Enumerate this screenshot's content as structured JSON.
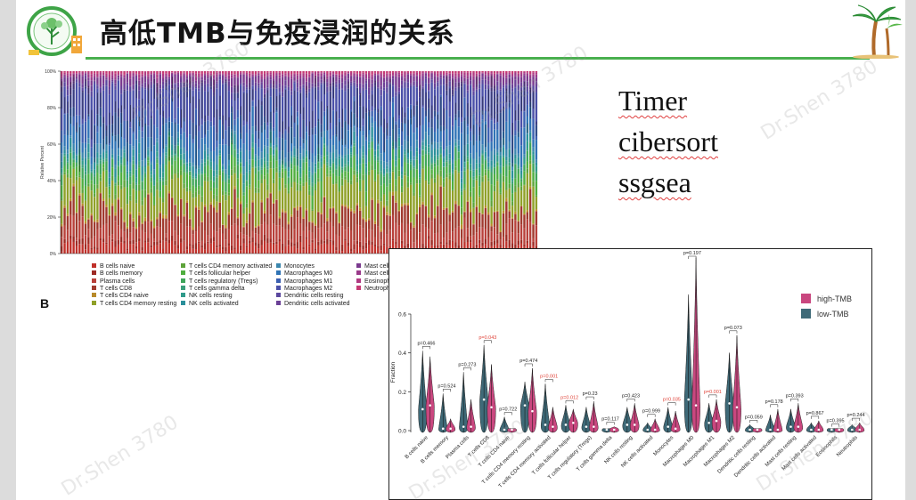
{
  "slide": {
    "title": "高低TMB与免疫浸润的关系",
    "methods": [
      "Timer",
      "cibersort",
      "ssgsea"
    ],
    "panel_label": "B",
    "watermark": "Dr.Shen 3780",
    "accent_color": "#49b04f",
    "logo_icon": "tree-logo-icon",
    "decor_icon": "palm-tree-icon"
  },
  "chart_data": [
    {
      "type": "bar",
      "subtype": "stacked-100-percent",
      "ylabel": "Relative Percent",
      "ytick_labels": [
        "0%",
        "20%",
        "40%",
        "60%",
        "80%",
        "100%"
      ],
      "ylim": [
        0,
        1
      ],
      "sample_count": 160,
      "cell_types": [
        {
          "name": "B cells naive",
          "color": "#c0302a",
          "mean": 0.04
        },
        {
          "name": "B cells memory",
          "color": "#9d2a24",
          "mean": 0.02
        },
        {
          "name": "Plasma cells",
          "color": "#b8403a",
          "mean": 0.07
        },
        {
          "name": "T cells CD8",
          "color": "#a03a2e",
          "mean": 0.1
        },
        {
          "name": "T cells CD4 naive",
          "color": "#b88a2a",
          "mean": 0.01
        },
        {
          "name": "T cells CD4 memory resting",
          "color": "#8fa028",
          "mean": 0.12
        },
        {
          "name": "T cells CD4 memory activated",
          "color": "#5da33a",
          "mean": 0.02
        },
        {
          "name": "T cells follicular helper",
          "color": "#4fae3f",
          "mean": 0.05
        },
        {
          "name": "T cells regulatory (Tregs)",
          "color": "#3fa55a",
          "mean": 0.04
        },
        {
          "name": "T cells gamma delta",
          "color": "#3a9e7a",
          "mean": 0.01
        },
        {
          "name": "NK cells resting",
          "color": "#2f9a8a",
          "mean": 0.02
        },
        {
          "name": "NK cells activated",
          "color": "#2a8f9a",
          "mean": 0.03
        },
        {
          "name": "Monocytes",
          "color": "#3a86ad",
          "mean": 0.03
        },
        {
          "name": "Macrophages M0",
          "color": "#2f73b5",
          "mean": 0.1
        },
        {
          "name": "Macrophages M1",
          "color": "#3a5fb0",
          "mean": 0.08
        },
        {
          "name": "Macrophages M2",
          "color": "#4a4fa8",
          "mean": 0.16
        },
        {
          "name": "Dendritic cells resting",
          "color": "#5a479e",
          "mean": 0.02
        },
        {
          "name": "Dendritic cells activated",
          "color": "#6a3f96",
          "mean": 0.02
        },
        {
          "name": "Mast cells resting",
          "color": "#7a3a8e",
          "mean": 0.03
        },
        {
          "name": "Mast cells activated",
          "color": "#9a3a8a",
          "mean": 0.01
        },
        {
          "name": "Eosinophils",
          "color": "#b03a82",
          "mean": 0.01
        },
        {
          "name": "Neutrophils",
          "color": "#c63a74",
          "mean": 0.01
        }
      ]
    },
    {
      "type": "violin",
      "ylabel": "Fraction",
      "ylim": [
        0,
        0.6
      ],
      "yticks": [
        0.0,
        0.2,
        0.4,
        0.6
      ],
      "ytick_labels": [
        "0.0",
        "0.2",
        "0.4",
        "0.6"
      ],
      "series": [
        {
          "name": "high-TMB",
          "color": "#c9477f"
        },
        {
          "name": "low-TMB",
          "color": "#3f6a78"
        }
      ],
      "categories": [
        {
          "name": "B cells naive",
          "p": "p=0.466",
          "sig": false,
          "max": 0.42,
          "high_max": 0.39,
          "low_max": 0.42,
          "high_med": 0.13,
          "low_med": 0.11
        },
        {
          "name": "B cells memory",
          "p": "p=0.524",
          "sig": false,
          "max": 0.2,
          "high_max": 0.07,
          "low_max": 0.2,
          "high_med": 0.01,
          "low_med": 0.01
        },
        {
          "name": "Plasma cells",
          "p": "p=0.273",
          "sig": false,
          "max": 0.31,
          "high_max": 0.17,
          "low_max": 0.31,
          "high_med": 0.02,
          "low_med": 0.02
        },
        {
          "name": "T cells CD8",
          "p": "p=0.043",
          "sig": true,
          "max": 0.45,
          "high_max": 0.35,
          "low_max": 0.45,
          "high_med": 0.12,
          "low_med": 0.16
        },
        {
          "name": "T cells CD4 naive",
          "p": "p=0.722",
          "sig": false,
          "max": 0.08,
          "high_max": 0.02,
          "low_max": 0.08,
          "high_med": 0.0,
          "low_med": 0.0
        },
        {
          "name": "T cells CD4 memory resting",
          "p": "p=0.474",
          "sig": false,
          "max": 0.33,
          "high_max": 0.33,
          "low_max": 0.26,
          "high_med": 0.1,
          "low_med": 0.13
        },
        {
          "name": "T cells CD4 memory activated",
          "p": "p=0.001",
          "sig": true,
          "max": 0.25,
          "high_max": 0.13,
          "low_max": 0.25,
          "high_med": 0.02,
          "low_med": 0.03
        },
        {
          "name": "T cells follicular helper",
          "p": "p=0.012",
          "sig": true,
          "max": 0.14,
          "high_max": 0.12,
          "low_max": 0.14,
          "high_med": 0.04,
          "low_med": 0.03
        },
        {
          "name": "T cells regulatory (Tregs)",
          "p": "p=0.23",
          "sig": false,
          "max": 0.16,
          "high_max": 0.16,
          "low_max": 0.13,
          "high_med": 0.02,
          "low_med": 0.02
        },
        {
          "name": "T cells gamma delta",
          "p": "p=0.117",
          "sig": false,
          "max": 0.03,
          "high_max": 0.03,
          "low_max": 0.01,
          "high_med": 0.0,
          "low_med": 0.0
        },
        {
          "name": "NK cells resting",
          "p": "p=0.423",
          "sig": false,
          "max": 0.15,
          "high_max": 0.15,
          "low_max": 0.13,
          "high_med": 0.03,
          "low_med": 0.03
        },
        {
          "name": "NK cells activated",
          "p": "p=0.999",
          "sig": false,
          "max": 0.07,
          "high_max": 0.07,
          "low_max": 0.05,
          "high_med": 0.0,
          "low_med": 0.0
        },
        {
          "name": "Monocytes",
          "p": "p=0.035",
          "sig": true,
          "max": 0.13,
          "high_max": 0.11,
          "low_max": 0.13,
          "high_med": 0.01,
          "low_med": 0.02
        },
        {
          "name": "Macrophages M0",
          "p": "p=0.197",
          "sig": false,
          "max": 0.9,
          "high_max": 0.9,
          "low_max": 0.71,
          "high_med": 0.13,
          "low_med": 0.16
        },
        {
          "name": "Macrophages M1",
          "p": "p=0.001",
          "sig": true,
          "max": 0.17,
          "high_max": 0.17,
          "low_max": 0.15,
          "high_med": 0.05,
          "low_med": 0.04
        },
        {
          "name": "Macrophages M2",
          "p": "p=0.073",
          "sig": false,
          "max": 0.5,
          "high_max": 0.5,
          "low_max": 0.41,
          "high_med": 0.12,
          "low_med": 0.14
        },
        {
          "name": "Dendritic cells resting",
          "p": "p=0.059",
          "sig": false,
          "max": 0.04,
          "high_max": 0.02,
          "low_max": 0.04,
          "high_med": 0.0,
          "low_med": 0.0
        },
        {
          "name": "Dendritic cells activated",
          "p": "p=0.178",
          "sig": false,
          "max": 0.12,
          "high_max": 0.12,
          "low_max": 0.09,
          "high_med": 0.0,
          "low_med": 0.0
        },
        {
          "name": "Mast cells resting",
          "p": "p=0.393",
          "sig": false,
          "max": 0.15,
          "high_max": 0.15,
          "low_max": 0.12,
          "high_med": 0.02,
          "low_med": 0.02
        },
        {
          "name": "Mast cells activated",
          "p": "p=0.867",
          "sig": false,
          "max": 0.06,
          "high_max": 0.06,
          "low_max": 0.05,
          "high_med": 0.0,
          "low_med": 0.0
        },
        {
          "name": "Eosinophils",
          "p": "p=0.395",
          "sig": false,
          "max": 0.02,
          "high_max": 0.02,
          "low_max": 0.02,
          "high_med": 0.0,
          "low_med": 0.0
        },
        {
          "name": "Neutrophils",
          "p": "p=0.244",
          "sig": false,
          "max": 0.05,
          "high_max": 0.05,
          "low_max": 0.04,
          "high_med": 0.0,
          "low_med": 0.0
        }
      ]
    }
  ]
}
